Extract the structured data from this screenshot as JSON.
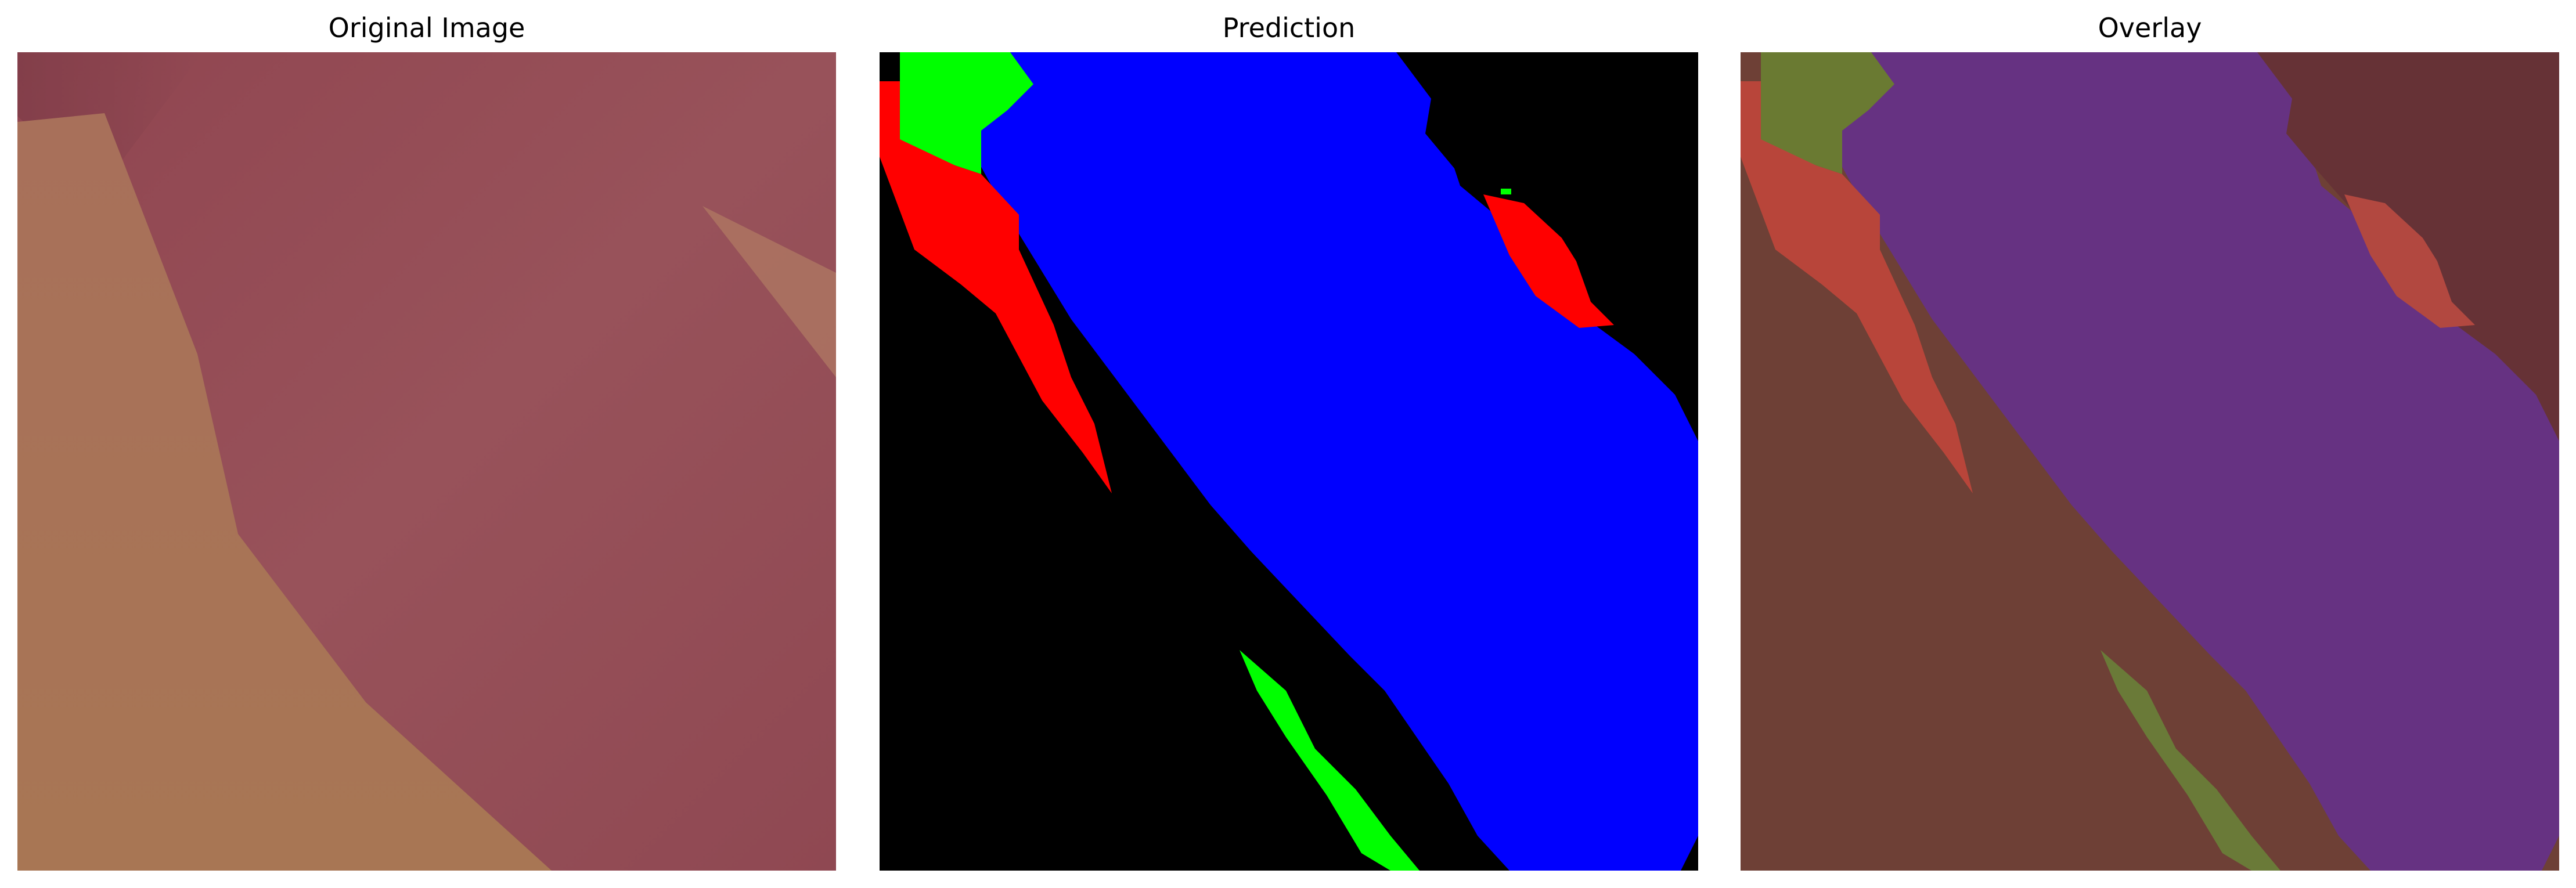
{
  "panels": [
    {
      "title": "Original Image"
    },
    {
      "title": "Prediction"
    },
    {
      "title": "Overlay"
    }
  ],
  "colors": {
    "background_class": "#000000",
    "class_blue": "#0000ff",
    "class_red": "#ff0000",
    "class_green": "#00ff00",
    "original_base": "#8f4850",
    "original_light_region": "#a0704f",
    "overlay_purple": "#663380",
    "overlay_brown": "#6e4034"
  }
}
